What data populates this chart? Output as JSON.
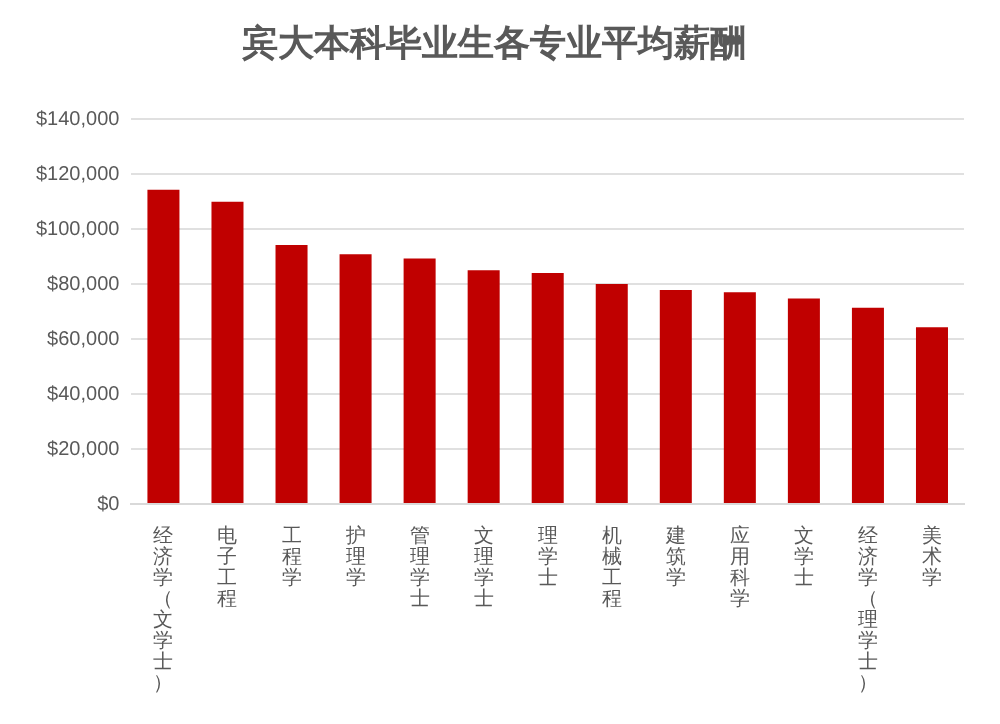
{
  "chart_data": {
    "type": "bar",
    "title": "宾大本科毕业生各专业平均薪酬",
    "categories": [
      "经济学（文学士）",
      "电子工程",
      "工程学",
      "护理学",
      "管理学士",
      "文理学士",
      "理学士",
      "机械工程",
      "建筑学",
      "应用科学",
      "文学士",
      "经济学（理学士）",
      "美术学"
    ],
    "values": [
      114300,
      110000,
      94200,
      90900,
      89300,
      85000,
      84000,
      80000,
      77900,
      77000,
      74800,
      71400,
      64300
    ],
    "color": "#c00000",
    "ylim": [
      0,
      140000
    ],
    "yticks": [
      {
        "value": 0,
        "label": "$0"
      },
      {
        "value": 20000,
        "label": "$20,000"
      },
      {
        "value": 40000,
        "label": "$40,000"
      },
      {
        "value": 60000,
        "label": "$60,000"
      },
      {
        "value": 80000,
        "label": "$80,000"
      },
      {
        "value": 100000,
        "label": "$100,000"
      },
      {
        "value": 120000,
        "label": "$120,000"
      },
      {
        "value": 140000,
        "label": "$140,000"
      }
    ],
    "grid": "y",
    "legend": false
  }
}
